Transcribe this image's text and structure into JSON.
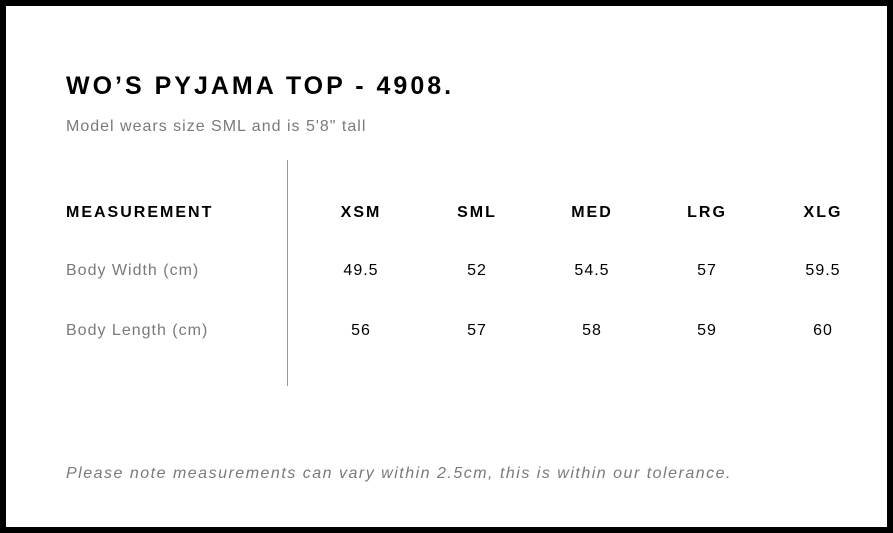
{
  "title": "WO’S PYJAMA TOP - 4908.",
  "subtitle": "Model wears size SML and is 5'8\" tall",
  "table": {
    "header_label": "MEASUREMENT",
    "sizes": [
      "XSM",
      "SML",
      "MED",
      "LRG",
      "XLG"
    ],
    "rows": [
      {
        "label": "Body Width (cm)",
        "values": [
          "49.5",
          "52",
          "54.5",
          "57",
          "59.5"
        ]
      },
      {
        "label": "Body Length (cm)",
        "values": [
          "56",
          "57",
          "58",
          "59",
          "60"
        ]
      }
    ]
  },
  "note": "Please note measurements can vary within 2.5cm, this is within our tolerance.",
  "colors": {
    "border": "#000000",
    "text_primary": "#000000",
    "text_muted": "#7a7a7a",
    "divider": "#999999"
  }
}
